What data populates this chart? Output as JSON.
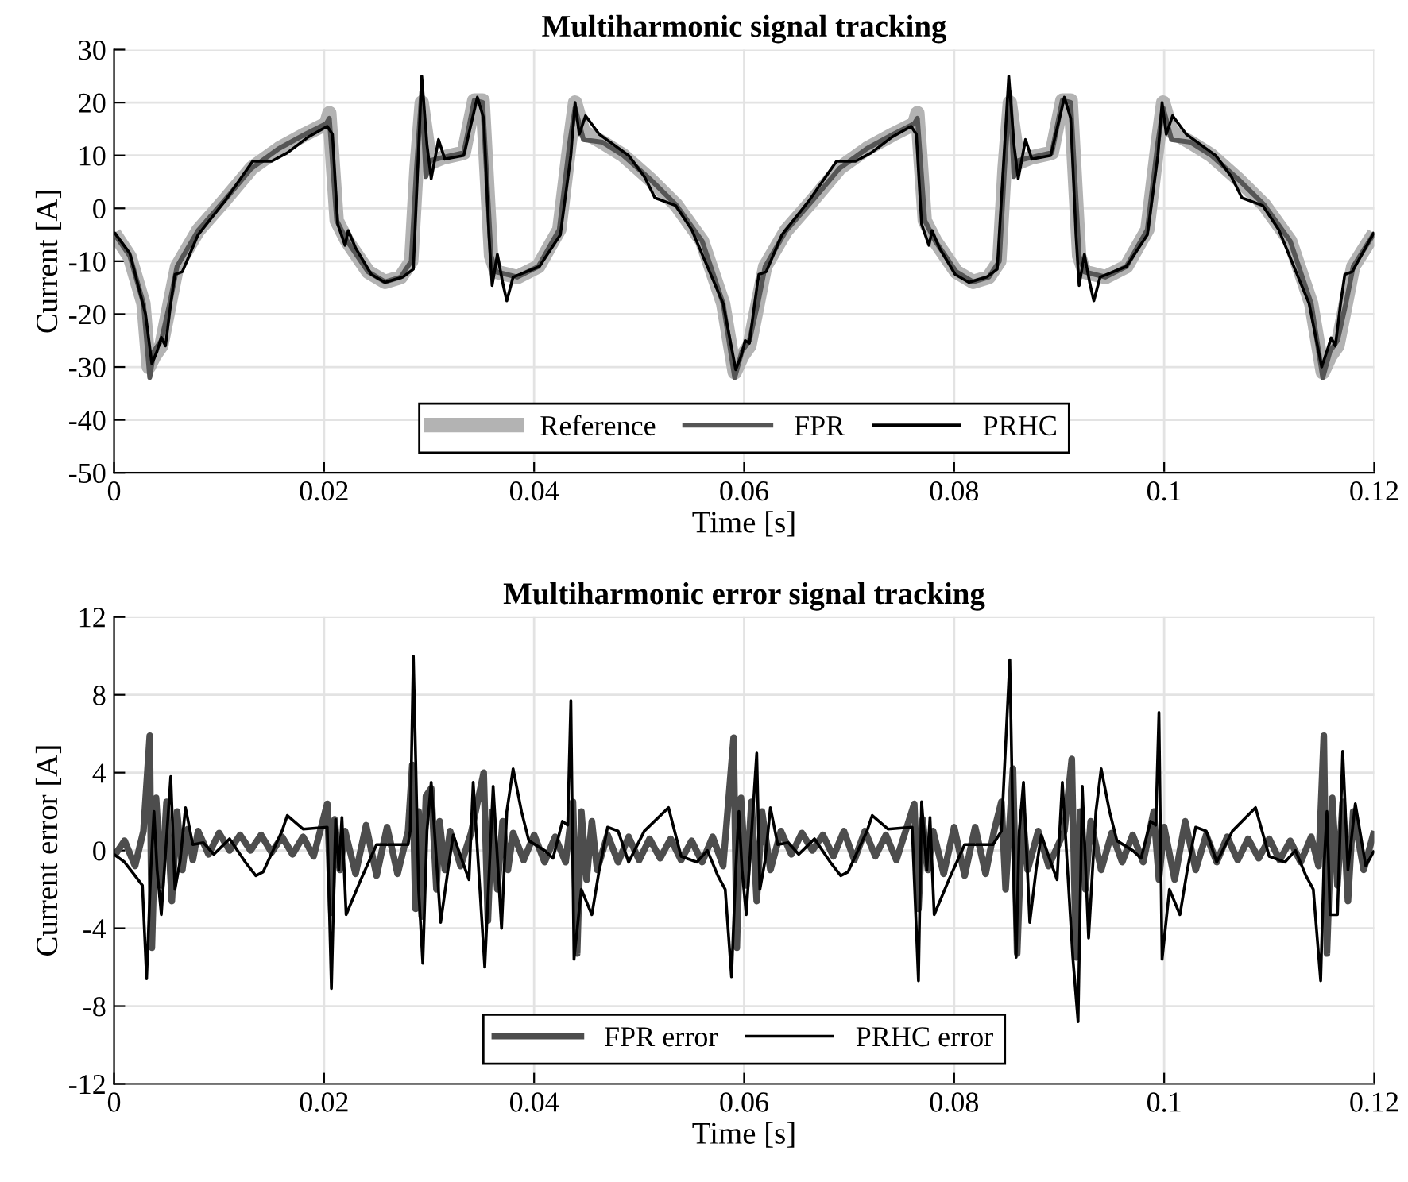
{
  "chart_data": [
    {
      "type": "line",
      "title": "Multiharmonic signal tracking",
      "xlabel": "Time [s]",
      "ylabel": "Current [A]",
      "xlim": [
        0,
        0.12
      ],
      "ylim": [
        -50,
        30
      ],
      "xticks": [
        0,
        0.02,
        0.04,
        0.06,
        0.08,
        0.1,
        0.12
      ],
      "yticks": [
        -50,
        -40,
        -30,
        -20,
        -10,
        0,
        10,
        20,
        30
      ],
      "grid": true,
      "legend": "bottom",
      "line_style": "solid",
      "marker": "none",
      "series": [
        {
          "name": "Reference",
          "color": "#b3b3b3",
          "x": [
            0,
            0.0015,
            0.0028,
            0.0033,
            0.0038,
            0.0045,
            0.0053,
            0.006,
            0.008,
            0.0106,
            0.0131,
            0.0157,
            0.0182,
            0.0202,
            0.0205,
            0.0212,
            0.0222,
            0.0242,
            0.0258,
            0.0273,
            0.0283,
            0.0288,
            0.0293,
            0.0301,
            0.0313,
            0.0333,
            0.0343,
            0.0351,
            0.0359,
            0.0364,
            0.0384,
            0.0404,
            0.0424,
            0.0434,
            0.0439,
            0.0447,
            0.0465,
            0.0485,
            0.051,
            0.0535,
            0.056,
            0.058,
            0.0591,
            0.0598,
            0.0605,
            0.0613,
            0.062,
            0.064,
            0.0666,
            0.0691,
            0.0717,
            0.0742,
            0.0762,
            0.0765,
            0.0772,
            0.0782,
            0.0802,
            0.0818,
            0.0833,
            0.0843,
            0.0848,
            0.0853,
            0.0861,
            0.0873,
            0.0893,
            0.0903,
            0.0911,
            0.0919,
            0.0924,
            0.0944,
            0.0964,
            0.0984,
            0.0994,
            0.0999,
            0.1007,
            0.1025,
            0.1045,
            0.107,
            0.1095,
            0.112,
            0.114,
            0.1151,
            0.1158,
            0.1165,
            0.1173,
            0.118,
            0.12
          ],
          "values": [
            -4.7,
            -9.2,
            -18,
            -30,
            -28,
            -26,
            -18,
            -11,
            -4.2,
            1.7,
            7.6,
            11.3,
            14,
            16,
            18,
            -2.3,
            -6.2,
            -12,
            -13.9,
            -13,
            -10,
            7.6,
            20,
            8.6,
            9.6,
            10.5,
            20.4,
            20.4,
            -9,
            -12,
            -13,
            -11,
            -4,
            12.5,
            20,
            14.5,
            12.5,
            10,
            5.6,
            0.7,
            -6.2,
            -18,
            -31,
            -28,
            -26,
            -18,
            -11,
            -4.2,
            1.7,
            7.6,
            11.3,
            14,
            16,
            18,
            -2.3,
            -6.2,
            -12,
            -13.9,
            -13,
            -10,
            7.6,
            20,
            8.6,
            9.6,
            10.5,
            20.4,
            20.4,
            -9,
            -12,
            -13,
            -11,
            -4,
            12.5,
            20,
            14.5,
            12.5,
            10,
            5.6,
            0.7,
            -6.2,
            -18,
            -31,
            -28,
            -26,
            -18,
            -11,
            -4.7
          ]
        },
        {
          "name": "FPR",
          "color": "#555555",
          "x": [
            0,
            0.0015,
            0.0028,
            0.0034,
            0.0038,
            0.0045,
            0.0053,
            0.006,
            0.008,
            0.0106,
            0.0131,
            0.0157,
            0.0182,
            0.0202,
            0.0205,
            0.0212,
            0.0222,
            0.0242,
            0.0258,
            0.0273,
            0.0283,
            0.0288,
            0.0293,
            0.0297,
            0.0301,
            0.0313,
            0.0333,
            0.0343,
            0.0351,
            0.0359,
            0.0364,
            0.0384,
            0.0404,
            0.0424,
            0.0434,
            0.0439,
            0.0447,
            0.0465,
            0.0485,
            0.051,
            0.0535,
            0.056,
            0.058,
            0.0591,
            0.0598,
            0.0605,
            0.0613,
            0.062,
            0.064,
            0.0666,
            0.0691,
            0.0717,
            0.0742,
            0.0762,
            0.0765,
            0.0772,
            0.0782,
            0.0802,
            0.0818,
            0.0833,
            0.0843,
            0.0848,
            0.0853,
            0.0857,
            0.0861,
            0.0873,
            0.0893,
            0.0903,
            0.0911,
            0.0919,
            0.0924,
            0.0944,
            0.0964,
            0.0984,
            0.0994,
            0.0999,
            0.1007,
            0.1025,
            0.1045,
            0.107,
            0.1095,
            0.112,
            0.114,
            0.1151,
            0.1158,
            0.1165,
            0.1173,
            0.118,
            0.12
          ],
          "values": [
            -4.7,
            -9,
            -18,
            -32,
            -27,
            -25,
            -18,
            -11,
            -4.2,
            1.7,
            7.6,
            11.3,
            14,
            16,
            17,
            -2.3,
            -6.2,
            -12,
            -13.9,
            -13,
            -10,
            7.6,
            22,
            6,
            9,
            9.6,
            10.5,
            20.4,
            20,
            -9,
            -12,
            -13,
            -11,
            -4,
            12.5,
            19,
            13,
            12.5,
            10,
            5.6,
            0.7,
            -6.2,
            -18,
            -32,
            -27,
            -25,
            -18,
            -11,
            -4.2,
            1.7,
            7.6,
            11.3,
            14,
            16,
            17,
            -2.3,
            -6.2,
            -12,
            -13.9,
            -13,
            -10,
            7.6,
            22,
            6,
            9,
            9.6,
            10.5,
            20.4,
            20,
            -9,
            -12,
            -13,
            -11,
            -4,
            12.5,
            19,
            13,
            12.5,
            10,
            5.6,
            0.7,
            -6.2,
            -18,
            -32,
            -27,
            -25,
            -18,
            -11,
            -4.7
          ]
        },
        {
          "name": "PRHC",
          "color": "#000000",
          "x": [
            0,
            0.0015,
            0.003,
            0.0036,
            0.0041,
            0.0045,
            0.0049,
            0.0054,
            0.0058,
            0.0065,
            0.008,
            0.0106,
            0.0132,
            0.015,
            0.0165,
            0.0185,
            0.0203,
            0.0208,
            0.0213,
            0.022,
            0.0223,
            0.023,
            0.0245,
            0.0258,
            0.0275,
            0.0285,
            0.0293,
            0.0298,
            0.0302,
            0.0309,
            0.0315,
            0.0333,
            0.0346,
            0.0352,
            0.0357,
            0.036,
            0.0365,
            0.037,
            0.0374,
            0.038,
            0.0405,
            0.0425,
            0.0435,
            0.0439,
            0.0443,
            0.0449,
            0.0462,
            0.049,
            0.0505,
            0.0515,
            0.0535,
            0.055,
            0.058,
            0.0592,
            0.0597,
            0.0601,
            0.0605,
            0.061,
            0.0614,
            0.0621,
            0.0636,
            0.0662,
            0.0688,
            0.0706,
            0.0721,
            0.0741,
            0.0759,
            0.0764,
            0.0769,
            0.0776,
            0.0779,
            0.0786,
            0.0801,
            0.0814,
            0.0831,
            0.0841,
            0.0852,
            0.0857,
            0.0861,
            0.0868,
            0.0874,
            0.0892,
            0.0905,
            0.0911,
            0.0916,
            0.0919,
            0.0924,
            0.0929,
            0.0933,
            0.0939,
            0.0964,
            0.0984,
            0.0994,
            0.0998,
            0.1002,
            0.1008,
            0.1021,
            0.1049,
            0.1064,
            0.1074,
            0.1094,
            0.1109,
            0.1138,
            0.115,
            0.1155,
            0.1159,
            0.1163,
            0.1168,
            0.1172,
            0.1179,
            0.12
          ],
          "values": [
            -4.5,
            -8.5,
            -20,
            -29.4,
            -27,
            -24.4,
            -26,
            -18,
            -12.5,
            -12,
            -5,
            1.5,
            8.9,
            8.9,
            10.5,
            13.5,
            15.5,
            14,
            -3,
            -7,
            -4.2,
            -7.5,
            -12.5,
            -14,
            -13,
            -11.5,
            25,
            12,
            5.6,
            13,
            9.3,
            10,
            21,
            17,
            -5,
            -14.6,
            -8.7,
            -14,
            -17.5,
            -13,
            -11,
            -5,
            10,
            20,
            14,
            17.5,
            14,
            10,
            6,
            2,
            0.5,
            -4,
            -18,
            -30.5,
            -28,
            -25,
            -25.5,
            -18,
            -12.5,
            -12,
            -5,
            1.5,
            8.9,
            8.9,
            10.5,
            13.5,
            15.5,
            14,
            -3,
            -7,
            -4.2,
            -7.5,
            -12.5,
            -14,
            -13,
            -11.5,
            25,
            12,
            5.6,
            13,
            9.3,
            10,
            21,
            17,
            -5,
            -14.6,
            -8.7,
            -14,
            -17.5,
            -13,
            -11,
            -5,
            10,
            20,
            14,
            17.5,
            14,
            10,
            6,
            2,
            0.5,
            -4,
            -18,
            -30,
            -27,
            -24.5,
            -26,
            -18,
            -12.5,
            -12,
            -4.5
          ]
        }
      ]
    },
    {
      "type": "line",
      "title": "Multiharmonic error signal tracking",
      "xlabel": "Time [s]",
      "ylabel": "Current error [A]",
      "xlim": [
        0,
        0.12
      ],
      "ylim": [
        -12,
        12
      ],
      "xticks": [
        0,
        0.02,
        0.04,
        0.06,
        0.08,
        0.1,
        0.12
      ],
      "yticks": [
        -12,
        -8,
        -4,
        0,
        4,
        8,
        12
      ],
      "grid": true,
      "legend": "bottom",
      "line_style": "solid",
      "marker": "none",
      "series": [
        {
          "name": "FPR error",
          "color": "#4d4d4d",
          "x": [
            0,
            0.001,
            0.002,
            0.0028,
            0.0034,
            0.0036,
            0.004,
            0.0045,
            0.005,
            0.0055,
            0.006,
            0.0065,
            0.007,
            0.0075,
            0.008,
            0.009,
            0.01,
            0.011,
            0.012,
            0.013,
            0.014,
            0.015,
            0.016,
            0.017,
            0.018,
            0.019,
            0.0203,
            0.0207,
            0.021,
            0.0215,
            0.022,
            0.023,
            0.024,
            0.025,
            0.026,
            0.027,
            0.028,
            0.0284,
            0.0287,
            0.029,
            0.0293,
            0.0297,
            0.0302,
            0.0307,
            0.031,
            0.0315,
            0.032,
            0.033,
            0.034,
            0.0352,
            0.0356,
            0.036,
            0.0365,
            0.037,
            0.0375,
            0.038,
            0.039,
            0.04,
            0.041,
            0.042,
            0.043,
            0.0437,
            0.0441,
            0.0445,
            0.045,
            0.0455,
            0.046,
            0.047,
            0.048,
            0.049,
            0.05,
            0.051,
            0.052,
            0.053,
            0.054,
            0.055,
            0.056,
            0.057,
            0.058,
            0.059,
            0.0593,
            0.0597,
            0.0602,
            0.0607,
            0.0612,
            0.0617,
            0.0625,
            0.0635,
            0.0645,
            0.0655,
            0.0665,
            0.0675,
            0.0685,
            0.0695,
            0.0705,
            0.0715,
            0.0725,
            0.0735,
            0.0745,
            0.0762,
            0.0766,
            0.077,
            0.0775,
            0.078,
            0.079,
            0.08,
            0.081,
            0.082,
            0.083,
            0.0838,
            0.0845,
            0.0849,
            0.0856,
            0.086,
            0.0865,
            0.087,
            0.088,
            0.089,
            0.0905,
            0.0912,
            0.0916,
            0.092,
            0.0925,
            0.093,
            0.094,
            0.095,
            0.096,
            0.097,
            0.098,
            0.099,
            0.0995,
            0.1,
            0.101,
            0.102,
            0.103,
            0.104,
            0.105,
            0.106,
            0.107,
            0.108,
            0.109,
            0.11,
            0.111,
            0.112,
            0.113,
            0.114,
            0.1147,
            0.1152,
            0.1155,
            0.116,
            0.1165,
            0.117,
            0.1175,
            0.118,
            0.119,
            0.12
          ],
          "values": [
            -0.3,
            0.5,
            -0.8,
            1,
            5.9,
            -5,
            2.7,
            -1.8,
            2.5,
            -2.6,
            2,
            -1,
            1.1,
            -0.5,
            1,
            -0.2,
            0.9,
            0,
            0.8,
            0,
            0.8,
            -0.1,
            0.7,
            -0.2,
            0.7,
            -0.3,
            2.4,
            -3.2,
            1.6,
            -1,
            1,
            -1.2,
            1.3,
            -1.3,
            1.2,
            -1.2,
            1,
            4.4,
            -3,
            2,
            -3.4,
            2.8,
            3.2,
            -2,
            1.5,
            -1,
            1,
            -0.8,
            0.9,
            4,
            -3.6,
            2,
            -2,
            1.5,
            -1,
            0.9,
            -0.5,
            0.8,
            -0.6,
            0.7,
            -0.6,
            2.5,
            -5.3,
            2,
            -1.5,
            1.5,
            -1,
            0.8,
            -0.6,
            0.7,
            -0.5,
            0.6,
            -0.4,
            0.6,
            -0.5,
            0.5,
            -0.6,
            0.7,
            -0.8,
            5.8,
            -5,
            2.7,
            -1.8,
            2.5,
            -2.6,
            2,
            -1,
            1,
            -0.2,
            0.9,
            0,
            0.8,
            -0.3,
            1,
            -0.5,
            1,
            -0.3,
            0.8,
            -0.5,
            2.4,
            -3,
            1.6,
            -1,
            1,
            -1.2,
            1.2,
            -1.3,
            1.2,
            -1.2,
            1,
            2.5,
            -2,
            4.2,
            -5.3,
            2,
            -1,
            1,
            -0.8,
            1,
            4.7,
            -5.5,
            2,
            -2,
            1.5,
            -1,
            0.9,
            -0.6,
            0.8,
            -0.6,
            2,
            -1.5,
            1.2,
            -1.5,
            1.5,
            -1,
            0.8,
            -0.6,
            0.7,
            -0.5,
            0.6,
            -0.4,
            0.6,
            -0.5,
            0.5,
            -0.6,
            0.7,
            -0.8,
            5.9,
            -5.3,
            2.7,
            -1.8,
            2.5,
            -2.6,
            2,
            -1,
            1
          ]
        },
        {
          "name": "PRHC error",
          "color": "#000000",
          "x": [
            0,
            0.001,
            0.002,
            0.0027,
            0.0031,
            0.0035,
            0.0038,
            0.0041,
            0.0045,
            0.0054,
            0.0058,
            0.0063,
            0.0068,
            0.0075,
            0.0085,
            0.0095,
            0.011,
            0.0125,
            0.0135,
            0.0142,
            0.016,
            0.0165,
            0.018,
            0.0203,
            0.0207,
            0.0211,
            0.0214,
            0.0217,
            0.0221,
            0.0235,
            0.025,
            0.028,
            0.0282,
            0.0285,
            0.029,
            0.0294,
            0.0298,
            0.0302,
            0.0311,
            0.0318,
            0.0323,
            0.0332,
            0.0338,
            0.0342,
            0.0353,
            0.0361,
            0.0369,
            0.0374,
            0.038,
            0.0388,
            0.0395,
            0.041,
            0.0418,
            0.0427,
            0.0432,
            0.0435,
            0.0438,
            0.0445,
            0.0455,
            0.0462,
            0.047,
            0.048,
            0.049,
            0.0505,
            0.0528,
            0.054,
            0.0555,
            0.0565,
            0.0575,
            0.0582,
            0.0588,
            0.0592,
            0.0595,
            0.0598,
            0.0602,
            0.0612,
            0.0615,
            0.062,
            0.0625,
            0.0632,
            0.0642,
            0.0652,
            0.0667,
            0.0682,
            0.0692,
            0.0699,
            0.0717,
            0.0722,
            0.0737,
            0.076,
            0.0766,
            0.0769,
            0.0774,
            0.0777,
            0.0781,
            0.0795,
            0.081,
            0.0837,
            0.0845,
            0.0853,
            0.0857,
            0.0859,
            0.0862,
            0.0866,
            0.0872,
            0.0878,
            0.0883,
            0.0892,
            0.0898,
            0.0903,
            0.0913,
            0.0918,
            0.0922,
            0.0928,
            0.0935,
            0.094,
            0.0948,
            0.0955,
            0.097,
            0.0978,
            0.0987,
            0.0992,
            0.0995,
            0.0998,
            0.1005,
            0.1015,
            0.1022,
            0.103,
            0.104,
            0.105,
            0.1065,
            0.1087,
            0.11,
            0.1115,
            0.1125,
            0.1135,
            0.1142,
            0.1149,
            0.1152,
            0.1155,
            0.1158,
            0.1165,
            0.117,
            0.1175,
            0.1182,
            0.1192,
            0.12
          ],
          "values": [
            -0.2,
            -0.6,
            -1.3,
            -1.8,
            -6.6,
            -1,
            2,
            -1,
            -3.3,
            3.8,
            -2,
            -0.5,
            2.2,
            0.3,
            0.4,
            -0.2,
            0.6,
            -0.6,
            -1.3,
            -1.1,
            1,
            1.8,
            1.1,
            1.2,
            -7.1,
            1.6,
            -1,
            1.7,
            -3.3,
            -1.5,
            0.3,
            0.3,
            1,
            10,
            -2,
            -5.8,
            1,
            3.5,
            -3.7,
            -1,
            0.8,
            -0.6,
            -1.5,
            3.5,
            -6,
            3.3,
            -4,
            2,
            4.2,
            2,
            0.5,
            0,
            -0.4,
            1.5,
            1.3,
            7.7,
            -5.6,
            -2,
            -3.3,
            -1,
            1.2,
            1,
            -0.6,
            1,
            2.2,
            -0.3,
            -0.6,
            0,
            -1.3,
            -2,
            -6.5,
            -1,
            2,
            -1,
            -3.3,
            5,
            -2,
            -0.5,
            2.2,
            0.3,
            0.4,
            -0.2,
            0.6,
            -0.6,
            -1.3,
            -1.1,
            1,
            1.8,
            1.1,
            1.2,
            -6.7,
            2.5,
            -1,
            1.7,
            -3.3,
            -1.5,
            0.3,
            0.3,
            1,
            9.8,
            -2,
            -5.5,
            1,
            3.5,
            -3.7,
            -1,
            0.8,
            -0.6,
            -1.5,
            3.5,
            -5.5,
            -8.8,
            3.3,
            -4.5,
            2,
            4.2,
            2,
            0.5,
            0,
            -0.4,
            1.5,
            1.3,
            7.1,
            -5.6,
            -2,
            -3.3,
            -1,
            1.2,
            1,
            -0.6,
            1,
            2.2,
            -0.3,
            -0.6,
            0,
            -1.3,
            -2,
            -6.7,
            -1,
            2,
            -3.3,
            -3.3,
            5.1,
            -1,
            2.4,
            -0.8,
            0
          ]
        }
      ]
    }
  ]
}
